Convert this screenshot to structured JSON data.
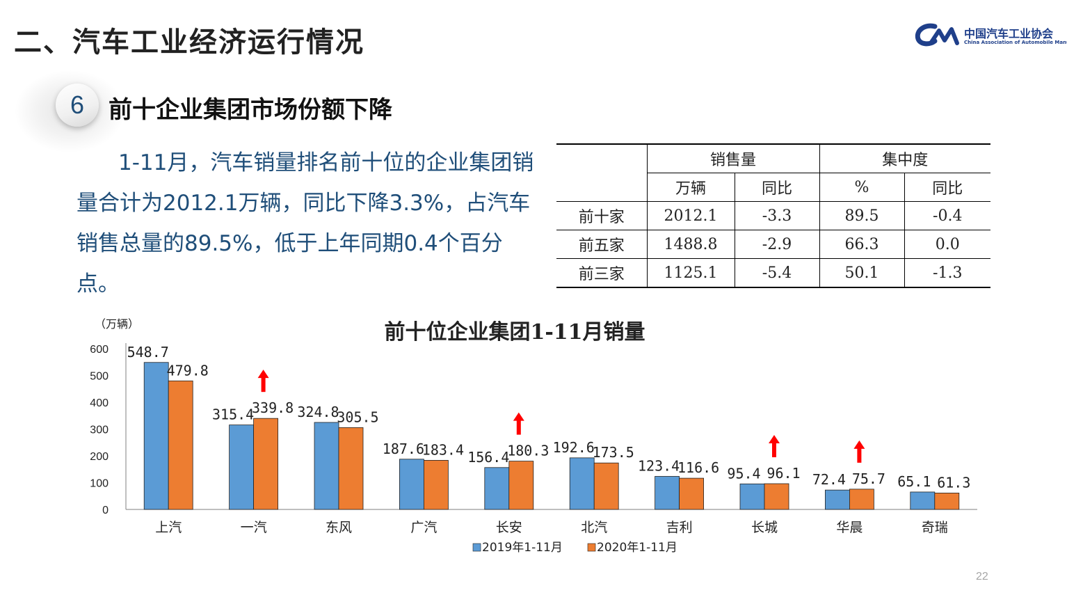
{
  "header": {
    "section_title": "二、汽车工业经济运行情况"
  },
  "logo": {
    "name_cn": "中国汽车工业协会",
    "name_en": "China Association of Automobile Manufacturers"
  },
  "subheading": {
    "number": "6",
    "title": "前十企业集团市场份额下降"
  },
  "paragraph": "1-11月，汽车销量排名前十位的企业集团销量合计为2012.1万辆，同比下降3.3%，占汽车销售总量的89.5%，低于上年同期0.4个百分点。",
  "table": {
    "group_headers": [
      "销售量",
      "集中度"
    ],
    "sub_headers": [
      "万辆",
      "同比",
      "%",
      "同比"
    ],
    "rows": [
      {
        "label": "前十家",
        "cells": [
          "2012.1",
          "-3.3",
          "89.5",
          "-0.4"
        ]
      },
      {
        "label": "前五家",
        "cells": [
          "1488.8",
          "-2.9",
          "66.3",
          "0.0"
        ]
      },
      {
        "label": "前三家",
        "cells": [
          "1125.1",
          "-5.4",
          "50.1",
          "-1.3"
        ]
      }
    ]
  },
  "chart_data": {
    "type": "bar",
    "title": "前十位企业集团1-11月销量",
    "ylabel": "（万辆）",
    "ylim": [
      0,
      600
    ],
    "yticks": [
      0,
      100,
      200,
      300,
      400,
      500,
      600
    ],
    "categories": [
      "上汽",
      "一汽",
      "东风",
      "广汽",
      "长安",
      "北汽",
      "吉利",
      "长城",
      "华晨",
      "奇瑞"
    ],
    "series": [
      {
        "name": "2019年1-11月",
        "color": "#5b9bd5",
        "values": [
          548.7,
          315.4,
          324.8,
          187.6,
          156.4,
          192.6,
          123.4,
          95.4,
          72.4,
          65.1
        ]
      },
      {
        "name": "2020年1-11月",
        "color": "#ed7d31",
        "values": [
          479.8,
          339.8,
          305.5,
          183.4,
          180.3,
          173.5,
          116.6,
          96.1,
          75.7,
          61.3
        ]
      }
    ],
    "increase_markers": [
      "一汽",
      "长安",
      "长城",
      "华晨"
    ],
    "marker_color": "#ff0000",
    "legend_position": "bottom",
    "grid": false
  },
  "page_number": "22"
}
